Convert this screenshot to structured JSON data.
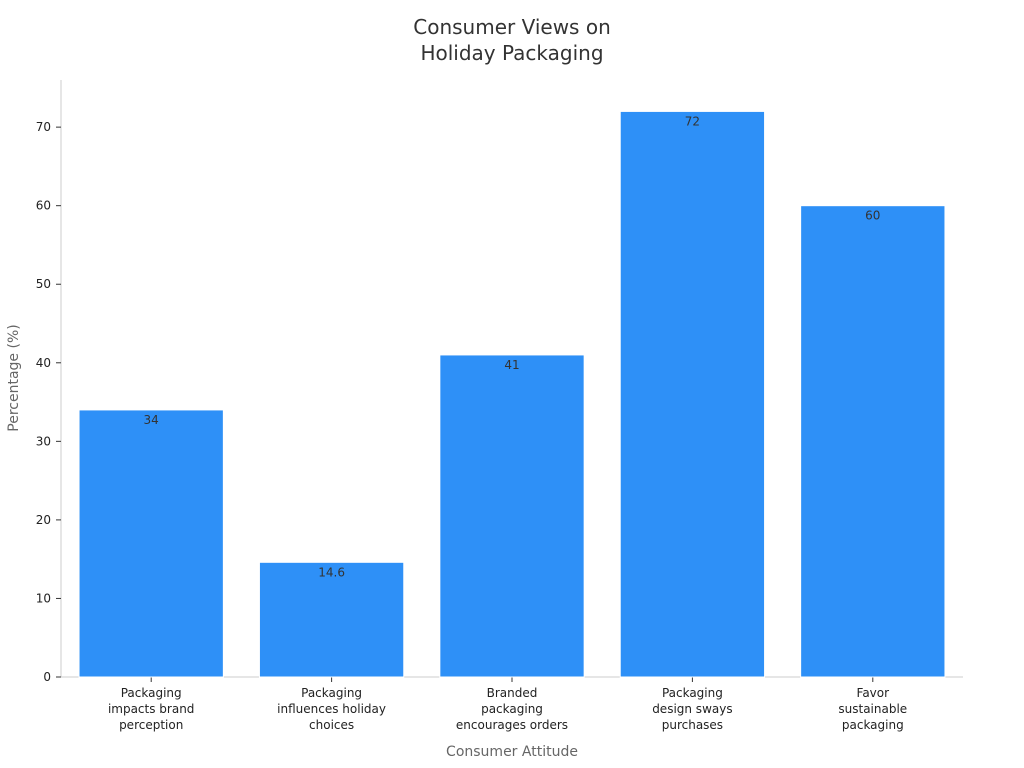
{
  "chart_data": {
    "type": "bar",
    "title": "Consumer Views on\nHoliday Packaging",
    "x_label": "Consumer Attitude",
    "y_label": "Percentage (%)",
    "categories": [
      "Packaging\nimpacts brand\nperception",
      "Packaging\ninfluences holiday\nchoices",
      "Branded\npackaging\nencourages orders",
      "Packaging\ndesign sways\npurchases",
      "Favor\nsustainable\npackaging"
    ],
    "values": [
      34,
      14.6,
      41,
      72,
      60
    ],
    "color": "#2e90f7",
    "ylim": [
      0,
      76
    ],
    "yticks": [
      0,
      10,
      20,
      30,
      40,
      50,
      60,
      70
    ],
    "grid": false
  }
}
